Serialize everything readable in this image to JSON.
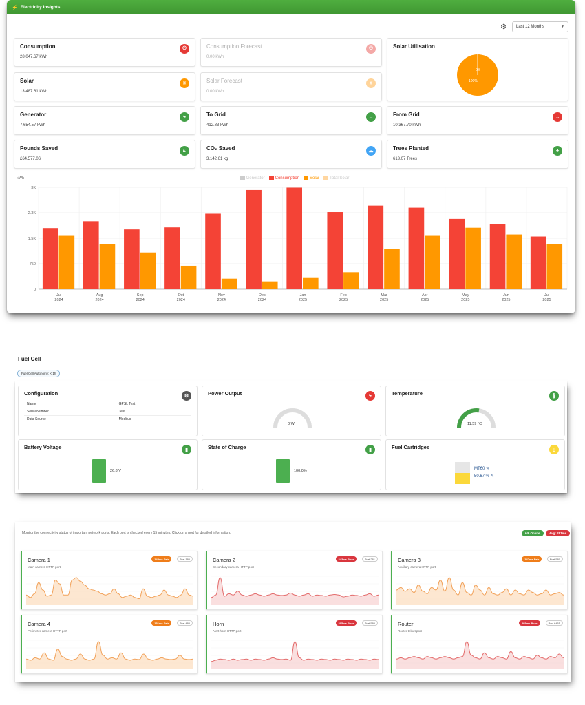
{
  "electricity": {
    "header_title": "Electricity Insights",
    "period_select": "Last 12 Months",
    "cards": {
      "consumption": {
        "title": "Consumption",
        "value": "28,047.67 kWh"
      },
      "consumption_forecast": {
        "title": "Consumption Forecast",
        "value": "0.00 kWh"
      },
      "solar_utilisation": {
        "title": "Solar Utilisation",
        "pie_labels": [
          "0%",
          "100%"
        ]
      },
      "solar": {
        "title": "Solar",
        "value": "13,487.61 kWh"
      },
      "solar_forecast": {
        "title": "Solar Forecast",
        "value": "0.00 kWh"
      },
      "generator": {
        "title": "Generator",
        "value": "7,654.57 kWh"
      },
      "to_grid": {
        "title": "To Grid",
        "value": "412.83 kWh"
      },
      "from_grid": {
        "title": "From Grid",
        "value": "10,367.70 kWh"
      },
      "pounds_saved": {
        "title": "Pounds Saved",
        "value": "£64,577.06"
      },
      "co2_saved": {
        "title": "CO₂ Saved",
        "value": "3,142.61 kg"
      },
      "trees_planted": {
        "title": "Trees Planted",
        "value": "613.07 Trees"
      }
    },
    "colors": {
      "accent": "#43a047",
      "consumption": "#f44336",
      "solar": "#ff9800"
    }
  },
  "chart_data": {
    "type": "bar",
    "ylabel": "kWh",
    "ylim": [
      0,
      3000
    ],
    "yticks": [
      "0",
      "750",
      "1.5K",
      "2.3K",
      "3K"
    ],
    "tick_values": [
      0,
      750,
      1500,
      2250,
      3000
    ],
    "legend_position": "top-center",
    "legend": [
      {
        "name": "Generator",
        "color": "#cccccc",
        "hidden": true
      },
      {
        "name": "Consumption",
        "color": "#f44336",
        "hidden": false
      },
      {
        "name": "Solar",
        "color": "#ff9800",
        "hidden": false
      },
      {
        "name": "Total Solar",
        "color": "#ffd6a0",
        "hidden": true
      }
    ],
    "categories": [
      [
        "Jul",
        "2024"
      ],
      [
        "Aug",
        "2024"
      ],
      [
        "Sep",
        "2024"
      ],
      [
        "Oct",
        "2024"
      ],
      [
        "Nov",
        "2024"
      ],
      [
        "Dec",
        "2024"
      ],
      [
        "Jan",
        "2025"
      ],
      [
        "Feb",
        "2025"
      ],
      [
        "Mar",
        "2025"
      ],
      [
        "Apr",
        "2025"
      ],
      [
        "May",
        "2025"
      ],
      [
        "Jun",
        "2025"
      ],
      [
        "Jul",
        "2025"
      ]
    ],
    "series": [
      {
        "name": "Consumption",
        "color": "#f44336",
        "values": [
          1800,
          2000,
          1760,
          1820,
          2220,
          2920,
          2990,
          2270,
          2460,
          2400,
          2070,
          1920,
          1550
        ]
      },
      {
        "name": "Solar",
        "color": "#ff9800",
        "values": [
          1570,
          1320,
          1080,
          690,
          310,
          230,
          330,
          500,
          1190,
          1570,
          1810,
          1610,
          1320
        ]
      }
    ],
    "grid": true
  },
  "fuel_cell": {
    "heading": "Fuel Cell",
    "autonomy_badge": "Fuel Cell Autonomy: < 1h",
    "configuration": {
      "title": "Configuration",
      "rows": [
        {
          "key": "Name",
          "value": "GPSL Test"
        },
        {
          "key": "Serial Number",
          "value": "Test"
        },
        {
          "key": "Data Source",
          "value": "Modbus"
        }
      ]
    },
    "power_output": {
      "title": "Power Output",
      "value": "0 W",
      "fraction": 0
    },
    "temperature": {
      "title": "Temperature",
      "value": "11.59 °C",
      "fraction": 0.55
    },
    "battery_voltage": {
      "title": "Battery Voltage",
      "value": "26.8 V"
    },
    "state_of_charge": {
      "title": "State of Charge",
      "value": "100.0%"
    },
    "fuel_cartridges": {
      "title": "Fuel Cartridges",
      "model": "MT60",
      "level": "50.67 %",
      "level_fraction": 0.5067
    }
  },
  "network": {
    "intro": "Monitor the connectivity status of important network ports. Each port is checked every 15 minutes. Click on a port for detailed information.",
    "online_pill": "6/6 Online",
    "avg_pill": "Avg: 281ms",
    "ports": [
      {
        "name": "Camera 1",
        "desc": "Main camera HTTP port",
        "status": "145ms Fair",
        "status_color": "#ef7d1a",
        "port": "Port 180",
        "line": "#f2a25a",
        "fill": "#fbd7b3",
        "points": [
          0.3,
          0.2,
          0.35,
          0.8,
          0.5,
          0.25,
          0.3,
          0.9,
          0.75,
          0.3,
          0.3,
          0.9,
          1.0,
          0.85,
          0.7,
          0.55,
          0.5,
          0.45,
          0.35,
          0.3,
          0.35,
          0.55,
          0.35,
          0.2,
          0.25,
          0.3,
          0.2,
          0.15,
          0.55,
          0.25,
          0.2,
          0.25,
          0.3,
          0.5,
          0.3,
          0.25,
          0.2,
          0.3,
          0.55,
          0.3,
          0.25
        ]
      },
      {
        "name": "Camera 2",
        "desc": "Secondary camera HTTP port",
        "status": "343ms Poor",
        "status_color": "#d9363e",
        "port": "Port 281",
        "line": "#e36b6b",
        "fill": "#f7c9c9",
        "points": [
          0.2,
          0.3,
          1.0,
          0.25,
          0.35,
          0.3,
          0.45,
          0.3,
          0.25,
          0.3,
          0.35,
          0.3,
          0.25,
          0.3,
          0.35,
          0.3,
          0.28,
          0.3,
          0.38,
          0.3,
          0.25,
          0.3,
          0.35,
          0.25,
          0.3,
          0.28,
          0.25,
          0.3,
          0.32,
          0.3,
          0.22,
          0.25,
          0.3,
          0.28,
          0.25,
          0.3,
          0.35,
          0.25,
          0.3
        ]
      },
      {
        "name": "Camera 3",
        "desc": "Auxiliary camera HTTP port",
        "status": "147ms Fair",
        "status_color": "#ef7d1a",
        "port": "Port 580",
        "line": "#f2a25a",
        "fill": "#fbd7b3",
        "points": [
          0.5,
          0.6,
          0.45,
          0.55,
          0.4,
          0.7,
          0.45,
          0.35,
          0.6,
          0.5,
          0.9,
          0.45,
          1.0,
          0.5,
          0.3,
          0.8,
          0.4,
          0.3,
          0.7,
          0.5,
          0.3,
          0.6,
          0.35,
          0.3,
          0.4,
          0.55,
          0.3,
          0.5,
          0.35,
          0.3,
          0.5,
          0.4,
          0.3,
          0.35,
          0.5,
          0.3,
          0.35,
          0.4,
          0.3
        ]
      },
      {
        "name": "Camera 4",
        "desc": "Perimeter camera HTTP port",
        "status": "151ms Fair",
        "status_color": "#ef7d1a",
        "port": "Port 480",
        "line": "#f2a25a",
        "fill": "#fbd7b3",
        "points": [
          0.3,
          0.25,
          0.35,
          0.3,
          0.55,
          0.3,
          0.25,
          0.7,
          0.4,
          0.3,
          0.25,
          0.3,
          0.5,
          0.3,
          0.25,
          0.3,
          1.0,
          0.45,
          0.3,
          0.35,
          0.3,
          0.55,
          0.3,
          0.25,
          0.3,
          0.28,
          0.5,
          0.3,
          0.25,
          0.3,
          0.35,
          0.3,
          0.28,
          0.3,
          0.45,
          0.3,
          0.28,
          0.3
        ]
      },
      {
        "name": "Horn",
        "desc": "Alert horn HTTP port",
        "status": "395ms Poor",
        "status_color": "#d9363e",
        "port": "Port 580",
        "line": "#e36b6b",
        "fill": "#f7c9c9",
        "points": [
          0.2,
          0.25,
          0.3,
          0.28,
          0.25,
          0.3,
          0.25,
          0.28,
          0.3,
          0.25,
          0.3,
          0.28,
          0.25,
          0.3,
          0.35,
          0.3,
          0.28,
          0.3,
          0.25,
          1.0,
          0.35,
          0.25,
          0.3,
          0.28,
          0.25,
          0.3,
          0.28,
          0.25,
          0.3,
          0.28,
          0.25,
          0.3,
          0.28,
          0.25,
          0.3,
          0.28,
          0.25,
          0.3,
          0.28
        ]
      },
      {
        "name": "Router",
        "desc": "Router telnet port",
        "status": "305ms Poor",
        "status_color": "#d9363e",
        "port": "Port 6465",
        "line": "#e36b6b",
        "fill": "#f7c9c9",
        "points": [
          0.3,
          0.35,
          0.3,
          0.35,
          0.4,
          0.35,
          0.3,
          0.4,
          0.35,
          0.3,
          0.35,
          0.4,
          0.35,
          0.3,
          0.35,
          0.4,
          1.0,
          0.45,
          0.35,
          0.3,
          0.55,
          0.35,
          0.3,
          0.4,
          0.35,
          0.3,
          0.6,
          0.35,
          0.3,
          0.4,
          0.35,
          0.3,
          0.45,
          0.35,
          0.3,
          0.4,
          0.35,
          0.5,
          0.35
        ]
      }
    ]
  }
}
